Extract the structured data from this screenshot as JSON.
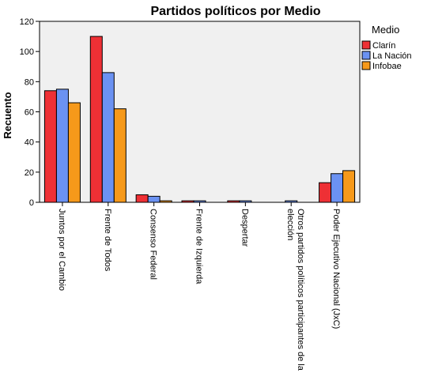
{
  "chart_data": {
    "type": "bar",
    "title": "Partidos políticos por Medio",
    "xlabel": "",
    "ylabel": "Recuento",
    "ylim": [
      0,
      120
    ],
    "yticks": [
      0,
      20,
      40,
      60,
      80,
      100,
      120
    ],
    "grid": false,
    "legend_position": "right",
    "legend_title": "Medio",
    "categories": [
      [
        "Juntos por el Cambio"
      ],
      [
        "Frente de Todos"
      ],
      [
        "Consenso Federal"
      ],
      [
        "Frente de Izquierda"
      ],
      [
        "Despertar"
      ],
      [
        "Otros partidos políticos participantes de la",
        "elección"
      ],
      [
        "Poder Ejecutivo Nacional (JxC)"
      ]
    ],
    "series": [
      {
        "name": "Clarín",
        "color": "#ee3035",
        "values": [
          74,
          110,
          5,
          1,
          1,
          0,
          13
        ]
      },
      {
        "name": "La Nación",
        "color": "#6b92f2",
        "values": [
          75,
          86,
          4,
          1,
          1,
          1,
          19
        ]
      },
      {
        "name": "Infobae",
        "color": "#f6991a",
        "values": [
          66,
          62,
          1,
          0,
          0,
          0,
          21
        ]
      }
    ],
    "plot_background": "#f0f0f0"
  }
}
